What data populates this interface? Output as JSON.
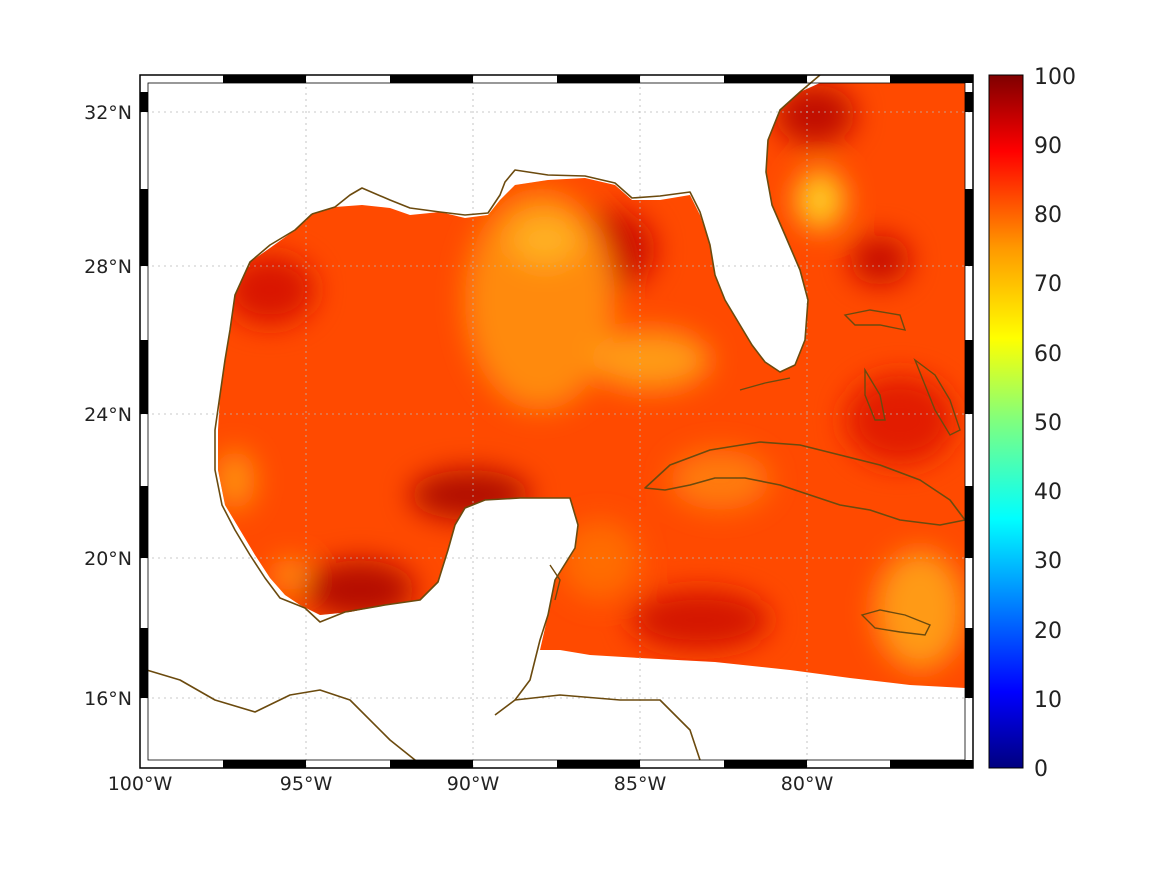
{
  "map": {
    "region": "Gulf of Mexico and Caribbean",
    "lon_range": [
      -100,
      -75
    ],
    "lat_range": [
      14,
      33
    ],
    "lon_ticks": [
      {
        "value": -100,
        "label": "100°W"
      },
      {
        "value": -95,
        "label": "95°W"
      },
      {
        "value": -90,
        "label": "90°W"
      },
      {
        "value": -85,
        "label": "85°W"
      },
      {
        "value": -80,
        "label": "80°W"
      }
    ],
    "lat_ticks": [
      {
        "value": 32,
        "label": "32°N"
      },
      {
        "value": 28,
        "label": "28°N"
      },
      {
        "value": 24,
        "label": "24°N"
      },
      {
        "value": 20,
        "label": "20°N"
      },
      {
        "value": 16,
        "label": "16°N"
      }
    ],
    "grid": true,
    "frame": "alternating black-white border",
    "coastline_color": "#6b4a0e",
    "data_field": "gridded percentage values over ocean",
    "typical_value": 85
  },
  "colorbar": {
    "min": 0,
    "max": 100,
    "ticks": [
      "100",
      "90",
      "80",
      "70",
      "60",
      "50",
      "40",
      "30",
      "20",
      "10",
      "0"
    ],
    "colormap": "jet",
    "stops": [
      "#00007f",
      "#0000ff",
      "#007fff",
      "#00ffff",
      "#7fff7f",
      "#ffff00",
      "#ff7f00",
      "#ff0000",
      "#7f0000"
    ]
  }
}
